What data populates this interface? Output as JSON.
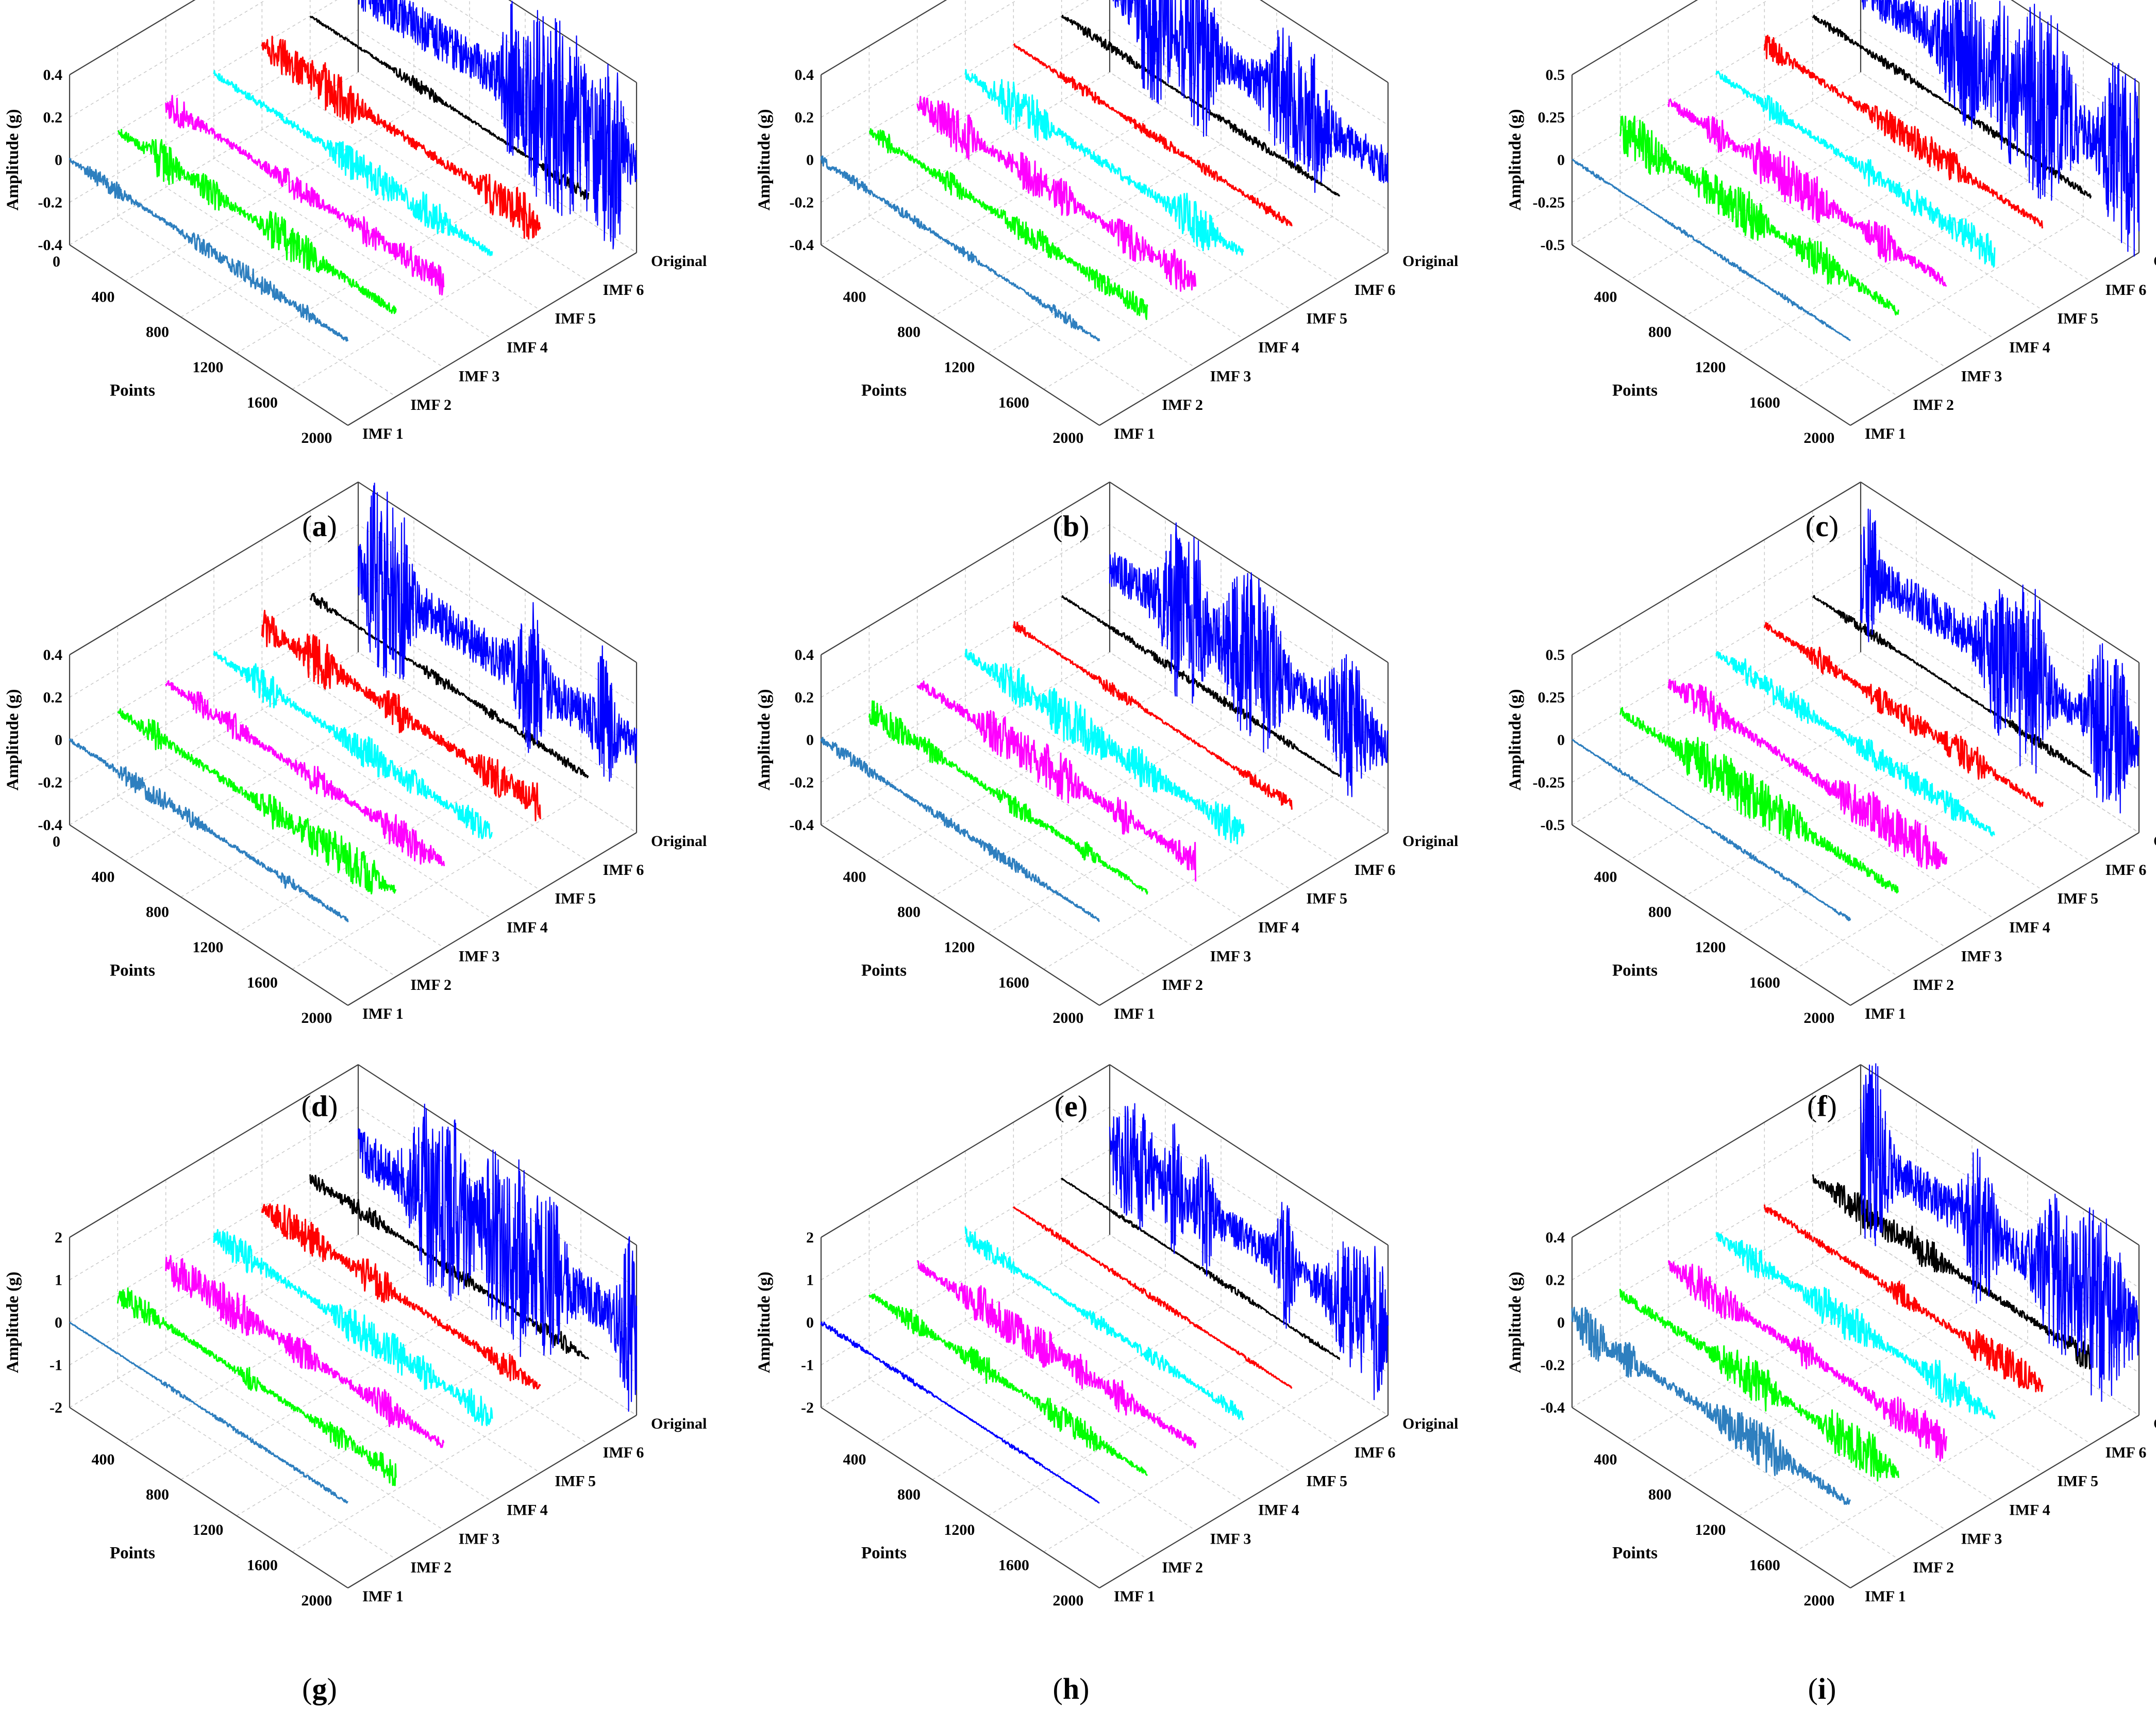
{
  "figure": {
    "panels": [
      {
        "caption": "a",
        "type_detail": "3d-waterfall-line"
      },
      {
        "caption": "b"
      },
      {
        "caption": "c"
      },
      {
        "caption": "d"
      },
      {
        "caption": "e"
      },
      {
        "caption": "f"
      },
      {
        "caption": "g"
      },
      {
        "caption": "h"
      },
      {
        "caption": "i"
      }
    ]
  },
  "chart_data": [
    {
      "panel": "a",
      "type": "line",
      "xlabel": "Points",
      "ylabel": "Amplitude (g)",
      "x_ticks": [
        "0",
        "400",
        "800",
        "1200",
        "1600",
        "2000"
      ],
      "z_ticks": [
        "-0.4",
        "-0.2",
        "0",
        "0.2",
        "0.4"
      ],
      "zlim": [
        -0.4,
        0.4
      ],
      "xlim": [
        0,
        2048
      ],
      "series_labels": [
        "IMF 1",
        "IMF 2",
        "IMF 3",
        "IMF 4",
        "IMF 5",
        "IMF 6",
        "Original"
      ],
      "series_colors": [
        "#2e7fbf",
        "#00ff00",
        "#ff00ff",
        "#00ffff",
        "#ff0000",
        "#000000",
        "#0000ff"
      ],
      "series_amplitudes": [
        0.03,
        0.06,
        0.05,
        0.05,
        0.07,
        0.02,
        0.22
      ],
      "grid": true
    },
    {
      "panel": "b",
      "type": "line",
      "xlabel": "Points",
      "ylabel": "Amplitude (g)",
      "x_ticks": [
        "400",
        "800",
        "1200",
        "1600",
        "2000"
      ],
      "z_ticks": [
        "-0.4",
        "-0.2",
        "0",
        "0.2",
        "0.4"
      ],
      "zlim": [
        -0.4,
        0.4
      ],
      "xlim": [
        0,
        2048
      ],
      "series_labels": [
        "IMF 1",
        "IMF 2",
        "IMF 3",
        "IMF 4",
        "IMF 5",
        "IMF 6",
        "Original"
      ],
      "series_colors": [
        "#2e7fbf",
        "#00ff00",
        "#ff00ff",
        "#00ffff",
        "#ff0000",
        "#000000",
        "#0000ff"
      ],
      "series_amplitudes": [
        0.02,
        0.04,
        0.07,
        0.07,
        0.02,
        0.015,
        0.2
      ],
      "grid": true
    },
    {
      "panel": "c",
      "type": "line",
      "xlabel": "Points",
      "ylabel": "Amplitude (g)",
      "x_ticks": [
        "400",
        "800",
        "1200",
        "1600",
        "2000"
      ],
      "z_ticks": [
        "-0.5",
        "-0.25",
        "0",
        "0.25",
        "0.5"
      ],
      "zlim": [
        -0.5,
        0.5
      ],
      "xlim": [
        0,
        2048
      ],
      "series_labels": [
        "IMF 1",
        "IMF 2",
        "IMF 3",
        "IMF 4",
        "IMF 5",
        "IMF 6",
        "Original"
      ],
      "series_colors": [
        "#2e7fbf",
        "#00ff00",
        "#ff00ff",
        "#00ffff",
        "#ff0000",
        "#000000",
        "#0000ff"
      ],
      "series_amplitudes": [
        0.01,
        0.09,
        0.09,
        0.06,
        0.06,
        0.02,
        0.27
      ],
      "grid": true
    },
    {
      "panel": "d",
      "type": "line",
      "xlabel": "Points",
      "ylabel": "Amplitude (g)",
      "x_ticks": [
        "0",
        "400",
        "800",
        "1200",
        "1600",
        "2000"
      ],
      "z_ticks": [
        "-0.4",
        "-0.2",
        "0",
        "0.2",
        "0.4"
      ],
      "zlim": [
        -0.4,
        0.4
      ],
      "xlim": [
        0,
        2048
      ],
      "series_labels": [
        "IMF 1",
        "IMF 2",
        "IMF 3",
        "IMF 4",
        "IMF 5",
        "IMF 6",
        "Original"
      ],
      "series_colors": [
        "#2e7fbf",
        "#00ff00",
        "#ff00ff",
        "#00ffff",
        "#ff0000",
        "#000000",
        "#0000ff"
      ],
      "series_amplitudes": [
        0.03,
        0.06,
        0.05,
        0.05,
        0.07,
        0.02,
        0.22
      ],
      "grid": true
    },
    {
      "panel": "e",
      "type": "line",
      "xlabel": "Points",
      "ylabel": "Amplitude (g)",
      "x_ticks": [
        "400",
        "800",
        "1200",
        "1600",
        "2000"
      ],
      "z_ticks": [
        "-0.4",
        "-0.2",
        "0",
        "0.2",
        "0.4"
      ],
      "zlim": [
        -0.4,
        0.4
      ],
      "xlim": [
        0,
        2048
      ],
      "series_labels": [
        "IMF 1",
        "IMF 2",
        "IMF 3",
        "IMF 4",
        "IMF 5",
        "IMF 6",
        "Original"
      ],
      "series_colors": [
        "#2e7fbf",
        "#00ff00",
        "#ff00ff",
        "#00ffff",
        "#ff0000",
        "#000000",
        "#0000ff"
      ],
      "series_amplitudes": [
        0.02,
        0.04,
        0.07,
        0.07,
        0.02,
        0.015,
        0.2
      ],
      "grid": true
    },
    {
      "panel": "f",
      "type": "line",
      "xlabel": "Points",
      "ylabel": "Amplitude (g)",
      "x_ticks": [
        "400",
        "800",
        "1200",
        "1600",
        "2000"
      ],
      "z_ticks": [
        "-0.5",
        "-0.25",
        "0",
        "0.25",
        "0.5"
      ],
      "zlim": [
        -0.5,
        0.5
      ],
      "xlim": [
        0,
        2048
      ],
      "series_labels": [
        "IMF 1",
        "IMF 2",
        "IMF 3",
        "IMF 4",
        "IMF 5",
        "IMF 6",
        "Original"
      ],
      "series_colors": [
        "#2e7fbf",
        "#00ff00",
        "#ff00ff",
        "#00ffff",
        "#ff0000",
        "#000000",
        "#0000ff"
      ],
      "series_amplitudes": [
        0.01,
        0.09,
        0.09,
        0.06,
        0.06,
        0.02,
        0.27
      ],
      "grid": true
    },
    {
      "panel": "g",
      "type": "line",
      "xlabel": "Points",
      "ylabel": "Amplitude (g)",
      "x_ticks": [
        "400",
        "800",
        "1200",
        "1600",
        "2000"
      ],
      "z_ticks": [
        "-2",
        "-1",
        "0",
        "1",
        "2"
      ],
      "zlim": [
        -2,
        2
      ],
      "xlim": [
        0,
        2048
      ],
      "series_labels": [
        "IMF 1",
        "IMF 2",
        "IMF 3",
        "IMF 4",
        "IMF 5",
        "IMF 6",
        "Original"
      ],
      "series_colors": [
        "#2e7fbf",
        "#00ff00",
        "#ff00ff",
        "#00ffff",
        "#ff0000",
        "#000000",
        "#0000ff"
      ],
      "series_amplitudes": [
        0.04,
        0.2,
        0.3,
        0.3,
        0.25,
        0.15,
        1.2
      ],
      "grid": true
    },
    {
      "panel": "h",
      "type": "line",
      "xlabel": "Points",
      "ylabel": "Amplitude (g)",
      "x_ticks": [
        "400",
        "800",
        "1200",
        "1600",
        "2000"
      ],
      "z_ticks": [
        "-2",
        "-1",
        "0",
        "1",
        "2"
      ],
      "zlim": [
        -2,
        2
      ],
      "xlim": [
        0,
        2048
      ],
      "series_labels": [
        "IMF 1",
        "IMF 2",
        "IMF 3",
        "IMF 4",
        "IMF 5",
        "IMF 6",
        "Original"
      ],
      "series_colors": [
        "#0000ff",
        "#00ff00",
        "#ff00ff",
        "#00ffff",
        "#ff0000",
        "#000000",
        "#0000ff"
      ],
      "series_amplitudes": [
        0.04,
        0.2,
        0.3,
        0.15,
        0.05,
        0.05,
        0.9
      ],
      "grid": true
    },
    {
      "panel": "i",
      "type": "line",
      "xlabel": "Points",
      "ylabel": "Amplitude (g)",
      "x_ticks": [
        "400",
        "800",
        "1200",
        "1600",
        "2000"
      ],
      "z_ticks": [
        "-0.4",
        "-0.2",
        "0",
        "0.2",
        "0.4"
      ],
      "zlim": [
        -0.4,
        0.4
      ],
      "xlim": [
        0,
        2048
      ],
      "series_labels": [
        "IMF 1",
        "IMF 2",
        "IMF 3",
        "IMF 4",
        "IMF 5",
        "IMF 6",
        "Original"
      ],
      "series_colors": [
        "#2e7fbf",
        "#00ff00",
        "#ff00ff",
        "#00ffff",
        "#ff0000",
        "#000000",
        "#0000ff"
      ],
      "series_amplitudes": [
        0.07,
        0.07,
        0.06,
        0.06,
        0.05,
        0.05,
        0.22
      ],
      "grid": true
    }
  ]
}
